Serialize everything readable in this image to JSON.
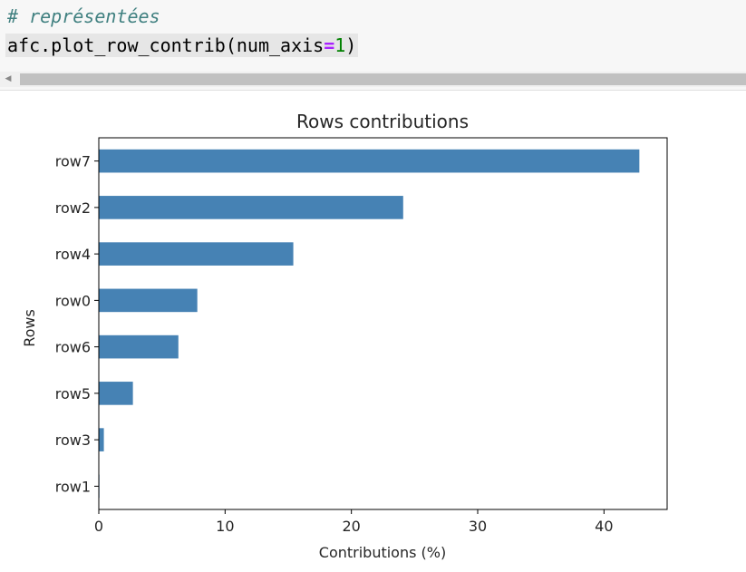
{
  "code": {
    "comment": "# représentées",
    "call_prefix": "afc.plot_row_contrib(num_axis",
    "call_eq": "=",
    "call_arg": "1",
    "call_suffix": ")"
  },
  "colors": {
    "bar": "#4682b4"
  },
  "chart_data": {
    "type": "bar",
    "orientation": "horizontal",
    "title": "Rows contributions",
    "xlabel": "Contributions (%)",
    "ylabel": "Rows",
    "categories": [
      "row7",
      "row2",
      "row4",
      "row0",
      "row6",
      "row5",
      "row3",
      "row1"
    ],
    "values": [
      42.8,
      24.1,
      15.4,
      7.8,
      6.3,
      2.7,
      0.4,
      0.05
    ],
    "xlim": [
      0,
      45
    ],
    "xticks": [
      0,
      10,
      20,
      30,
      40
    ],
    "grid": false,
    "legend": "none"
  }
}
